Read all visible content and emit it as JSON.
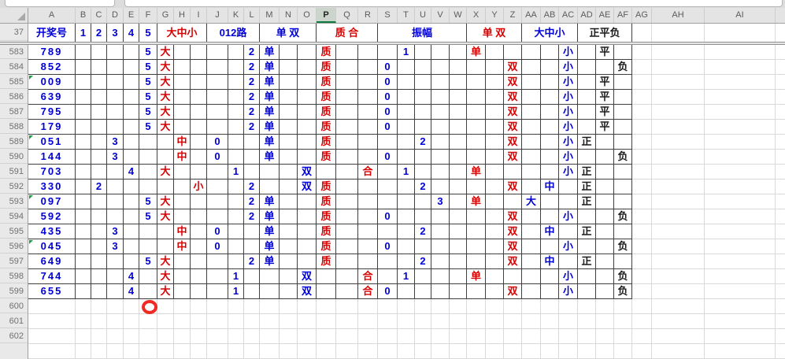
{
  "selection": {
    "column": "P"
  },
  "colors": {
    "data_blue": "#0000D8",
    "data_red": "#D80000",
    "data_black": "#1a1a1a",
    "selection_green": "#107C41",
    "flag_green": "#1f9e3e",
    "ring_red": "#ef2b24"
  },
  "column_letters": [
    "A",
    "B",
    "C",
    "D",
    "E",
    "F",
    "G",
    "H",
    "I",
    "J",
    "K",
    "L",
    "M",
    "N",
    "O",
    "P",
    "Q",
    "R",
    "S",
    "T",
    "U",
    "V",
    "W",
    "X",
    "Y",
    "Z",
    "AA",
    "AB",
    "AC",
    "AD",
    "AE",
    "AF",
    "AG",
    "AH",
    "AI"
  ],
  "header_row": {
    "row_label": "37",
    "cells": [
      {
        "cols": "A:A",
        "text": "开奖号",
        "color": "blue"
      },
      {
        "cols": "B:B",
        "text": "1",
        "color": "blue"
      },
      {
        "cols": "C:C",
        "text": "2",
        "color": "blue"
      },
      {
        "cols": "D:D",
        "text": "3",
        "color": "blue"
      },
      {
        "cols": "E:E",
        "text": "4",
        "color": "blue"
      },
      {
        "cols": "F:F",
        "text": "5",
        "color": "blue"
      },
      {
        "cols": "G:I",
        "text": "大中小",
        "color": "red"
      },
      {
        "cols": "J:L",
        "text": "012路",
        "color": "blue"
      },
      {
        "cols": "M:O",
        "text": "单 双",
        "color": "blue"
      },
      {
        "cols": "P:R",
        "text": "质 合",
        "color": "red"
      },
      {
        "cols": "S:W",
        "text": "振幅",
        "color": "blue"
      },
      {
        "cols": "X:Z",
        "text": "单 双",
        "color": "red"
      },
      {
        "cols": "AA:AC",
        "text": "大中小",
        "color": "blue"
      },
      {
        "cols": "AD:AF",
        "text": "正平负",
        "color": "black"
      }
    ]
  },
  "rows": [
    {
      "num": "583",
      "flag": false,
      "values": {
        "A": "789",
        "F": "5",
        "G": "大",
        "L": "2",
        "M": "单",
        "P": "质",
        "T": "1",
        "X": "单",
        "AC": "小",
        "AE": "平"
      }
    },
    {
      "num": "584",
      "flag": false,
      "values": {
        "A": "852",
        "F": "5",
        "G": "大",
        "L": "2",
        "M": "单",
        "P": "质",
        "S": "0",
        "Z": "双",
        "AC": "小",
        "AF": "负"
      }
    },
    {
      "num": "585",
      "flag": true,
      "values": {
        "A": "009",
        "F": "5",
        "G": "大",
        "L": "2",
        "M": "单",
        "P": "质",
        "S": "0",
        "Z": "双",
        "AC": "小",
        "AE": "平"
      }
    },
    {
      "num": "586",
      "flag": false,
      "values": {
        "A": "639",
        "F": "5",
        "G": "大",
        "L": "2",
        "M": "单",
        "P": "质",
        "S": "0",
        "Z": "双",
        "AC": "小",
        "AE": "平"
      }
    },
    {
      "num": "587",
      "flag": false,
      "values": {
        "A": "795",
        "F": "5",
        "G": "大",
        "L": "2",
        "M": "单",
        "P": "质",
        "S": "0",
        "Z": "双",
        "AC": "小",
        "AE": "平"
      }
    },
    {
      "num": "588",
      "flag": false,
      "values": {
        "A": "179",
        "F": "5",
        "G": "大",
        "L": "2",
        "M": "单",
        "P": "质",
        "S": "0",
        "Z": "双",
        "AC": "小",
        "AE": "平"
      }
    },
    {
      "num": "589",
      "flag": true,
      "values": {
        "A": "051",
        "D": "3",
        "H": "中",
        "J": "0",
        "M": "单",
        "P": "质",
        "U": "2",
        "Z": "双",
        "AC": "小",
        "AD": "正"
      }
    },
    {
      "num": "590",
      "flag": false,
      "values": {
        "A": "144",
        "D": "3",
        "H": "中",
        "J": "0",
        "M": "单",
        "P": "质",
        "S": "0",
        "Z": "双",
        "AC": "小",
        "AF": "负"
      }
    },
    {
      "num": "591",
      "flag": false,
      "values": {
        "A": "703",
        "E": "4",
        "G": "大",
        "K": "1",
        "O": "双",
        "R": "合",
        "T": "1",
        "X": "单",
        "AC": "小",
        "AD": "正"
      }
    },
    {
      "num": "592",
      "flag": false,
      "values": {
        "A": "330",
        "C": "2",
        "I": "小",
        "L": "2",
        "O": "双",
        "P": "质",
        "U": "2",
        "Z": "双",
        "AB": "中",
        "AD": "正"
      }
    },
    {
      "num": "593",
      "flag": true,
      "values": {
        "A": "097",
        "F": "5",
        "G": "大",
        "L": "2",
        "M": "单",
        "P": "质",
        "V": "3",
        "X": "单",
        "AA": "大",
        "AD": "正"
      }
    },
    {
      "num": "594",
      "flag": false,
      "values": {
        "A": "592",
        "F": "5",
        "G": "大",
        "L": "2",
        "M": "单",
        "P": "质",
        "S": "0",
        "Z": "双",
        "AC": "小",
        "AF": "负"
      }
    },
    {
      "num": "595",
      "flag": false,
      "values": {
        "A": "435",
        "D": "3",
        "H": "中",
        "J": "0",
        "M": "单",
        "P": "质",
        "U": "2",
        "Z": "双",
        "AB": "中",
        "AD": "正"
      }
    },
    {
      "num": "596",
      "flag": true,
      "values": {
        "A": "045",
        "D": "3",
        "H": "中",
        "J": "0",
        "M": "单",
        "P": "质",
        "S": "0",
        "Z": "双",
        "AC": "小",
        "AF": "负"
      }
    },
    {
      "num": "597",
      "flag": false,
      "values": {
        "A": "649",
        "F": "5",
        "G": "大",
        "L": "2",
        "M": "单",
        "P": "质",
        "U": "2",
        "Z": "双",
        "AB": "中",
        "AD": "正"
      }
    },
    {
      "num": "598",
      "flag": false,
      "values": {
        "A": "744",
        "E": "4",
        "G": "大",
        "K": "1",
        "O": "双",
        "R": "合",
        "T": "1",
        "X": "单",
        "AC": "小",
        "AF": "负"
      }
    },
    {
      "num": "599",
      "flag": false,
      "values": {
        "A": "655",
        "E": "4",
        "G": "大",
        "K": "1",
        "O": "双",
        "R": "合",
        "S": "0",
        "Z": "双",
        "AC": "小",
        "AF": "负"
      }
    },
    {
      "num": "600",
      "flag": false,
      "values": {}
    },
    {
      "num": "601",
      "flag": false,
      "values": {}
    },
    {
      "num": "602",
      "flag": false,
      "values": {}
    }
  ],
  "annotations": {
    "red_circle_near": "F600"
  }
}
